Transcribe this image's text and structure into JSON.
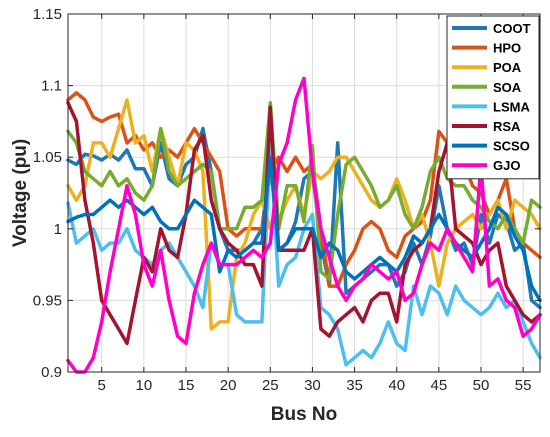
{
  "chart_data": {
    "type": "line",
    "xlabel": "Bus No",
    "ylabel": "Voltage (pu)",
    "xlim": [
      1,
      57
    ],
    "ylim": [
      0.9,
      1.15
    ],
    "xticks": [
      5,
      10,
      15,
      20,
      25,
      30,
      35,
      40,
      45,
      50,
      55
    ],
    "yticks": [
      0.9,
      0.95,
      1,
      1.05,
      1.1,
      1.15
    ],
    "ytick_labels": [
      "0.9",
      "0.95",
      "1",
      "1.05",
      "1.1",
      "1.15"
    ],
    "grid": true,
    "legend_position": "top-right",
    "x": [
      1,
      2,
      3,
      4,
      5,
      6,
      7,
      8,
      9,
      10,
      11,
      12,
      13,
      14,
      15,
      16,
      17,
      18,
      19,
      20,
      21,
      22,
      23,
      24,
      25,
      26,
      27,
      28,
      29,
      30,
      31,
      32,
      33,
      34,
      35,
      36,
      37,
      38,
      39,
      40,
      41,
      42,
      43,
      44,
      45,
      46,
      47,
      48,
      49,
      50,
      51,
      52,
      53,
      54,
      55,
      56,
      57
    ],
    "series": [
      {
        "name": "COOT",
        "color": "#1f77b4",
        "values": [
          1.048,
          1.045,
          1.052,
          1.051,
          1.048,
          1.052,
          1.048,
          1.055,
          1.042,
          1.042,
          1.03,
          1.06,
          1.035,
          1.03,
          1.045,
          1.05,
          1.07,
          1.04,
          1.0,
          0.985,
          0.985,
          0.985,
          0.99,
          1.0,
          1.048,
          0.985,
          0.99,
          1.005,
          1.035,
          1.04,
          0.99,
          0.96,
          1.06,
          0.955,
          0.96,
          0.965,
          0.97,
          0.975,
          0.975,
          0.96,
          0.97,
          0.99,
          0.975,
          0.995,
          1.03,
          1.0,
          0.985,
          0.99,
          0.975,
          1.01,
          0.99,
          1.01,
          1.005,
          0.985,
          0.99,
          0.95,
          0.945
        ]
      },
      {
        "name": "HPO",
        "color": "#d95319",
        "values": [
          1.09,
          1.095,
          1.09,
          1.078,
          1.075,
          1.078,
          1.08,
          1.06,
          1.065,
          1.055,
          1.06,
          1.05,
          1.055,
          1.05,
          1.06,
          1.07,
          1.06,
          1.05,
          1.04,
          1.0,
          0.995,
          1.0,
          1.0,
          1.0,
          1.04,
          1.05,
          1.04,
          1.05,
          1.04,
          1.045,
          1.0,
          0.96,
          0.96,
          0.975,
          0.985,
          1.0,
          1.005,
          1.0,
          0.985,
          0.98,
          0.995,
          1.0,
          1.005,
          1.02,
          1.068,
          1.06,
          1.04,
          1.045,
          1.03,
          1.025,
          1.01,
          1.02,
          1.035,
          1.0,
          0.99,
          0.985,
          0.98
        ]
      },
      {
        "name": "POA",
        "color": "#edb120",
        "values": [
          1.03,
          1.02,
          1.03,
          1.06,
          1.06,
          1.05,
          1.07,
          1.09,
          1.06,
          1.065,
          1.04,
          1.07,
          1.05,
          1.03,
          1.06,
          1.055,
          1.04,
          0.93,
          0.935,
          0.935,
          0.98,
          0.99,
          1.01,
          1.02,
          1.0,
          1.005,
          1.02,
          1.03,
          1.01,
          1.04,
          1.035,
          1.04,
          1.05,
          1.05,
          1.04,
          1.03,
          1.02,
          1.015,
          1.02,
          1.035,
          1.02,
          1.0,
          1.01,
          0.99,
          0.96,
          0.99,
          1.0,
          1.005,
          1.01,
          1.0,
          1.01,
          1.02,
          1.0,
          1.02,
          1.015,
          1.01,
          1.0
        ]
      },
      {
        "name": "SOA",
        "color": "#77ac30",
        "values": [
          1.068,
          1.06,
          1.04,
          1.035,
          1.03,
          1.04,
          1.03,
          1.035,
          1.025,
          1.02,
          1.03,
          1.07,
          1.04,
          1.03,
          1.035,
          1.04,
          1.045,
          1.04,
          1.0,
          1.0,
          1.0,
          1.015,
          1.015,
          1.02,
          1.088,
          1.0,
          1.03,
          1.03,
          1.005,
          1.058,
          0.97,
          0.965,
          1.01,
          1.045,
          1.05,
          1.04,
          1.03,
          1.015,
          1.02,
          1.03,
          1.01,
          1.0,
          1.015,
          1.04,
          1.05,
          1.035,
          1.03,
          1.03,
          1.02,
          1.015,
          1.005,
          1.0,
          1.01,
          1.0,
          0.99,
          1.02,
          1.015
        ]
      },
      {
        "name": "LSMA",
        "color": "#4dbeee",
        "values": [
          1.018,
          0.99,
          0.995,
          1.0,
          0.985,
          0.99,
          0.99,
          1.0,
          0.985,
          0.98,
          0.975,
          0.985,
          0.99,
          0.98,
          0.97,
          0.96,
          0.945,
          0.99,
          0.975,
          0.975,
          0.94,
          0.935,
          0.935,
          0.935,
          1.06,
          0.96,
          0.975,
          0.98,
          1.0,
          1.01,
          0.945,
          0.94,
          0.93,
          0.905,
          0.91,
          0.915,
          0.91,
          0.92,
          0.935,
          0.92,
          0.915,
          0.96,
          0.94,
          0.96,
          0.955,
          0.94,
          0.96,
          0.95,
          0.945,
          0.94,
          0.945,
          0.955,
          0.945,
          0.95,
          0.935,
          0.92,
          0.91
        ]
      },
      {
        "name": "RSA",
        "color": "#a2142f",
        "values": [
          1.088,
          1.075,
          1.02,
          0.99,
          0.95,
          0.94,
          0.93,
          0.92,
          0.95,
          0.98,
          0.97,
          1.0,
          0.985,
          0.98,
          1.01,
          1.055,
          1.065,
          1.02,
          1.0,
          0.99,
          0.985,
          0.975,
          0.975,
          0.96,
          1.085,
          0.985,
          0.985,
          0.985,
          0.985,
          1.0,
          0.93,
          0.925,
          0.935,
          0.94,
          0.945,
          0.935,
          0.95,
          0.955,
          0.955,
          0.935,
          0.975,
          0.985,
          0.99,
          1.0,
          1.04,
          1.06,
          1.0,
          0.995,
          0.99,
          0.975,
          0.985,
          0.99,
          0.96,
          0.95,
          0.94,
          0.935,
          0.94
        ]
      },
      {
        "name": "SCSO",
        "color": "#0072bd",
        "values": [
          1.005,
          1.008,
          1.01,
          1.01,
          1.015,
          1.02,
          1.015,
          1.02,
          1.015,
          1.01,
          1.015,
          1.005,
          1.0,
          1.0,
          1.01,
          1.02,
          1.015,
          1.01,
          0.97,
          0.985,
          0.98,
          0.985,
          0.99,
          0.99,
          1.05,
          0.985,
          0.99,
          1.0,
          1.0,
          1.0,
          0.98,
          0.99,
          0.985,
          0.97,
          0.965,
          0.97,
          0.975,
          0.98,
          0.975,
          0.97,
          0.98,
          0.995,
          0.99,
          1.0,
          1.01,
          1.0,
          0.99,
          0.985,
          0.98,
          0.99,
          1.0,
          1.015,
          1.01,
          0.995,
          0.985,
          0.96,
          0.95
        ]
      },
      {
        "name": "GJO",
        "color": "#ff00c8",
        "values": [
          0.908,
          0.9,
          0.9,
          0.91,
          0.935,
          0.97,
          1.0,
          1.03,
          1.01,
          0.975,
          0.96,
          0.985,
          0.95,
          0.925,
          0.92,
          0.955,
          0.975,
          0.99,
          0.975,
          0.975,
          0.975,
          0.98,
          0.985,
          0.98,
          0.99,
          1.045,
          1.06,
          1.09,
          1.105,
          1.04,
          1.0,
          0.98,
          0.96,
          0.95,
          0.96,
          0.965,
          0.975,
          0.97,
          0.965,
          0.97,
          0.95,
          0.955,
          0.975,
          0.99,
          0.985,
          1.0,
          0.99,
          0.98,
          0.97,
          1.045,
          0.96,
          0.965,
          0.95,
          0.945,
          0.925,
          0.93,
          0.94
        ]
      }
    ]
  }
}
